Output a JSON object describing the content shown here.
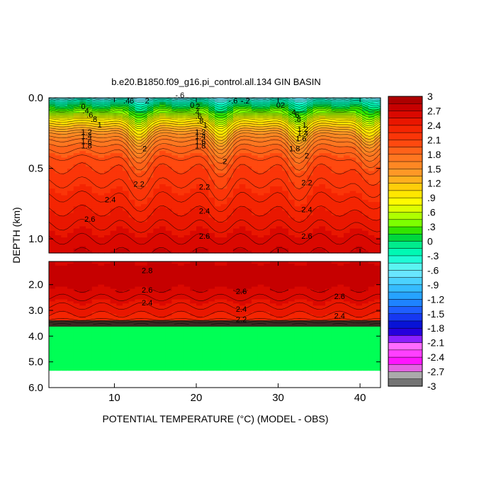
{
  "chart_data": {
    "type": "heatmap",
    "title": "b.e20.B1850.f09_g16.pi_control.all.134 GIN BASIN",
    "xlabel": "POTENTIAL TEMPERATURE (°C) (MODEL - OBS)",
    "ylabel": "DEPTH (km)",
    "xlim": [
      2,
      42.5
    ],
    "x_ticks": [
      "10",
      "20",
      "30",
      "40"
    ],
    "x_tick_values": [
      10,
      20,
      30,
      40
    ],
    "panels": [
      {
        "name": "upper",
        "ylim": [
          0.0,
          1.1
        ],
        "y_ticks": [
          "0.0",
          "0.5",
          "1.0"
        ],
        "y_tick_values": [
          0.0,
          0.5,
          1.0
        ]
      },
      {
        "name": "lower",
        "ylim": [
          1.1,
          6.0
        ],
        "y_ticks": [
          "2.0",
          "3.0",
          "4.0",
          "5.0",
          "6.0"
        ],
        "y_tick_values": [
          2.0,
          3.0,
          4.0,
          5.0,
          6.0
        ]
      }
    ],
    "colorbar": {
      "min": -3,
      "max": 3,
      "step": 0.15,
      "labels": [
        "3",
        "2.7",
        "2.4",
        "2.1",
        "1.8",
        "1.5",
        "1.2",
        ".9",
        ".6",
        ".3",
        "0",
        "-.3",
        "-.6",
        "-.9",
        "-1.2",
        "-1.5",
        "-1.8",
        "-2.1",
        "-2.4",
        "-2.7",
        "-3"
      ]
    },
    "profile": {
      "depth_km": [
        0.0,
        0.02,
        0.05,
        0.1,
        0.15,
        0.2,
        0.25,
        0.3,
        0.35,
        0.4,
        0.45,
        0.5,
        0.6,
        0.7,
        0.8,
        0.9,
        1.0,
        1.1,
        1.5,
        2.0,
        2.5,
        3.0,
        3.3,
        3.45,
        3.55
      ],
      "value": [
        -0.6,
        -0.3,
        0.0,
        0.4,
        0.9,
        1.2,
        1.5,
        1.7,
        1.85,
        1.95,
        2.05,
        2.1,
        2.2,
        2.3,
        2.4,
        2.5,
        2.6,
        2.7,
        2.8,
        2.75,
        2.6,
        2.45,
        2.35,
        2.2,
        2.1
      ],
      "ridges_x": [
        13,
        23,
        32.5,
        41
      ],
      "ridge_shift_km": 0.12
    },
    "land_mask": {
      "depth_from_km": 3.6,
      "depth_to_km": 5.35,
      "color": "#00ff55"
    },
    "contour_labels": [
      {
        "t": "0",
        "x": 6.2,
        "d": 0.06,
        "p": "upper"
      },
      {
        "t": ".4",
        "x": 6.5,
        "d": 0.09,
        "p": "upper"
      },
      {
        "t": ".6",
        "x": 7.0,
        "d": 0.12,
        "p": "upper"
      },
      {
        "t": ".8",
        "x": 7.5,
        "d": 0.15,
        "p": "upper"
      },
      {
        "t": "1",
        "x": 8.2,
        "d": 0.19,
        "p": "upper"
      },
      {
        "t": "1.2",
        "x": 6.6,
        "d": 0.24,
        "p": "upper"
      },
      {
        "t": "1.4",
        "x": 6.6,
        "d": 0.27,
        "p": "upper"
      },
      {
        "t": "1.6",
        "x": 6.6,
        "d": 0.31,
        "p": "upper"
      },
      {
        "t": "1.8",
        "x": 6.6,
        "d": 0.34,
        "p": "upper"
      },
      {
        "t": ".6",
        "x": 12.0,
        "d": 0.02,
        "p": "upper"
      },
      {
        "t": ".4",
        "x": 11.5,
        "d": 0.02,
        "p": "upper"
      },
      {
        "t": "2",
        "x": 14.0,
        "d": 0.02,
        "p": "upper"
      },
      {
        "t": "2",
        "x": 13.7,
        "d": 0.36,
        "p": "upper"
      },
      {
        "t": "-.6",
        "x": 18.0,
        "d": -0.02,
        "p": "upper"
      },
      {
        "t": "0",
        "x": 19.5,
        "d": 0.05,
        "p": "upper"
      },
      {
        "t": "2",
        "x": 20.2,
        "d": 0.06,
        "p": "upper"
      },
      {
        "t": ".4",
        "x": 20.0,
        "d": 0.1,
        "p": "upper"
      },
      {
        "t": ".6",
        "x": 20.3,
        "d": 0.13,
        "p": "upper"
      },
      {
        "t": ".8",
        "x": 20.5,
        "d": 0.16,
        "p": "upper"
      },
      {
        "t": "1",
        "x": 21.1,
        "d": 0.19,
        "p": "upper"
      },
      {
        "t": "1.2",
        "x": 20.5,
        "d": 0.24,
        "p": "upper"
      },
      {
        "t": "1.4",
        "x": 20.5,
        "d": 0.27,
        "p": "upper"
      },
      {
        "t": "1.6",
        "x": 20.5,
        "d": 0.31,
        "p": "upper"
      },
      {
        "t": "1.8",
        "x": 20.5,
        "d": 0.34,
        "p": "upper"
      },
      {
        "t": "-.6",
        "x": 24.5,
        "d": 0.02,
        "p": "upper"
      },
      {
        "t": "-.2",
        "x": 26.0,
        "d": 0.02,
        "p": "upper"
      },
      {
        "t": "2",
        "x": 23.5,
        "d": 0.45,
        "p": "upper"
      },
      {
        "t": "02",
        "x": 30.3,
        "d": 0.05,
        "p": "upper"
      },
      {
        "t": ".4",
        "x": 31.8,
        "d": 0.1,
        "p": "upper"
      },
      {
        "t": ".6",
        "x": 32.2,
        "d": 0.12,
        "p": "upper"
      },
      {
        "t": ".8",
        "x": 32.4,
        "d": 0.15,
        "p": "upper"
      },
      {
        "t": "1",
        "x": 33.2,
        "d": 0.19,
        "p": "upper"
      },
      {
        "t": "1.2",
        "x": 33.0,
        "d": 0.22,
        "p": "upper"
      },
      {
        "t": "1.4",
        "x": 33.0,
        "d": 0.25,
        "p": "upper"
      },
      {
        "t": "1.6",
        "x": 32.8,
        "d": 0.29,
        "p": "upper"
      },
      {
        "t": "1.8",
        "x": 32.0,
        "d": 0.36,
        "p": "upper"
      },
      {
        "t": "2",
        "x": 33.5,
        "d": 0.41,
        "p": "upper"
      },
      {
        "t": "2.2",
        "x": 13.0,
        "d": 0.61,
        "p": "upper"
      },
      {
        "t": "2.2",
        "x": 21.0,
        "d": 0.63,
        "p": "upper"
      },
      {
        "t": "2.2",
        "x": 33.5,
        "d": 0.6,
        "p": "upper"
      },
      {
        "t": "2.4",
        "x": 9.5,
        "d": 0.72,
        "p": "upper"
      },
      {
        "t": "2.4",
        "x": 21.0,
        "d": 0.8,
        "p": "upper"
      },
      {
        "t": "2.4",
        "x": 33.5,
        "d": 0.79,
        "p": "upper"
      },
      {
        "t": "2.6",
        "x": 7.0,
        "d": 0.86,
        "p": "upper"
      },
      {
        "t": "2.6",
        "x": 21.0,
        "d": 0.98,
        "p": "upper"
      },
      {
        "t": "2.6",
        "x": 33.5,
        "d": 0.98,
        "p": "upper"
      },
      {
        "t": "2.8",
        "x": 14.0,
        "d": 1.45,
        "p": "lower"
      },
      {
        "t": "2.6",
        "x": 14.0,
        "d": 2.2,
        "p": "lower"
      },
      {
        "t": "2.6",
        "x": 25.5,
        "d": 2.25,
        "p": "lower"
      },
      {
        "t": "2.6",
        "x": 37.5,
        "d": 2.45,
        "p": "lower"
      },
      {
        "t": "2.4",
        "x": 14.0,
        "d": 2.7,
        "p": "lower"
      },
      {
        "t": "2.4",
        "x": 25.5,
        "d": 2.95,
        "p": "lower"
      },
      {
        "t": "2.4",
        "x": 37.5,
        "d": 3.2,
        "p": "lower"
      },
      {
        "t": "2.2",
        "x": 25.5,
        "d": 3.35,
        "p": "lower"
      }
    ]
  }
}
